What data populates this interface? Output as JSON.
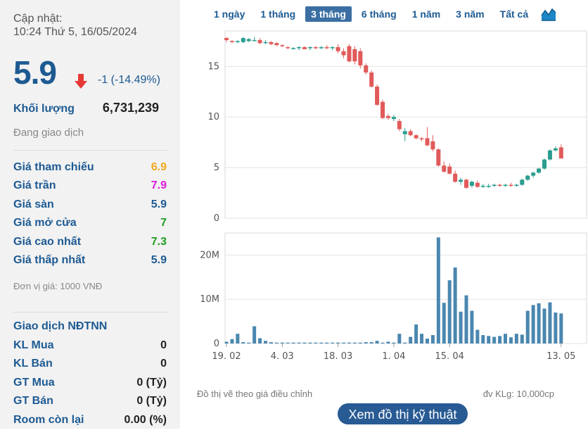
{
  "update": {
    "label": "Cập nhật:",
    "time": "10:24 Thứ 5, 16/05/2024"
  },
  "price": {
    "value": "5.9",
    "change": "-1 (-14.49%)",
    "direction_icon": "arrow-down-icon",
    "color": "#1d5a92",
    "down_color": "#e53935"
  },
  "volume": {
    "label": "Khối lượng",
    "value": "6,731,239"
  },
  "status": "Đang giao dịch",
  "price_rows": [
    {
      "label": "Giá tham chiếu",
      "value": "6.9",
      "color": "#f4a61d"
    },
    {
      "label": "Giá trần",
      "value": "7.9",
      "color": "#d81bd8"
    },
    {
      "label": "Giá sàn",
      "value": "5.9",
      "color": "#1d5a92"
    },
    {
      "label": "Giá mở cửa",
      "value": "7",
      "color": "#1e9e1e"
    },
    {
      "label": "Giá cao nhất",
      "value": "7.3",
      "color": "#1e9e1e"
    },
    {
      "label": "Giá thấp nhất",
      "value": "5.9",
      "color": "#1d5a92"
    }
  ],
  "unit_note": "Đơn vị giá: 1000 VNĐ",
  "foreign": {
    "title": "Giao dịch NĐTNN",
    "rows": [
      {
        "label": "KL Mua",
        "value": "0"
      },
      {
        "label": "KL Bán",
        "value": "0"
      },
      {
        "label": "GT Mua",
        "value": "0 (Tỷ)"
      },
      {
        "label": "GT Bán",
        "value": "0 (Tỷ)"
      },
      {
        "label": "Room còn lại",
        "value": "0.00 (%)"
      }
    ]
  },
  "tabs": [
    {
      "label": "1 ngày",
      "active": false
    },
    {
      "label": "1 tháng",
      "active": false
    },
    {
      "label": "3 tháng",
      "active": true
    },
    {
      "label": "6 tháng",
      "active": false
    },
    {
      "label": "1 năm",
      "active": false
    },
    {
      "label": "3 năm",
      "active": false
    },
    {
      "label": "Tất cả",
      "active": false
    }
  ],
  "chart_type_icon": "area-chart-icon",
  "chart_data": {
    "type": "candlestick",
    "price_axis": {
      "ticks": [
        "0",
        "5",
        "10",
        "15"
      ],
      "ylim": [
        0,
        18.5
      ]
    },
    "volume_axis": {
      "ticks": [
        "0",
        "10M",
        "20M"
      ],
      "ylim": [
        0,
        25
      ]
    },
    "x_tick_labels": [
      "19. 02",
      "4. 03",
      "18. 03",
      "1. 04",
      "15. 04",
      "13. 05"
    ],
    "x_tick_index": [
      0,
      10,
      20,
      30,
      40,
      60
    ],
    "up_color": "#2a9d8f",
    "down_color": "#e15a5a",
    "volume_color": "#4a87b0",
    "candles": [
      {
        "o": 17.8,
        "h": 17.9,
        "l": 17.4,
        "c": 17.6
      },
      {
        "o": 17.5,
        "h": 17.6,
        "l": 17.3,
        "c": 17.4
      },
      {
        "o": 17.4,
        "h": 17.6,
        "l": 17.3,
        "c": 17.5
      },
      {
        "o": 17.4,
        "h": 17.9,
        "l": 17.3,
        "c": 17.8
      },
      {
        "o": 17.5,
        "h": 17.8,
        "l": 17.4,
        "c": 17.7
      },
      {
        "o": 17.6,
        "h": 17.9,
        "l": 17.5,
        "c": 17.6
      },
      {
        "o": 17.6,
        "h": 17.8,
        "l": 17.2,
        "c": 17.3
      },
      {
        "o": 17.3,
        "h": 17.6,
        "l": 17.2,
        "c": 17.4
      },
      {
        "o": 17.4,
        "h": 17.5,
        "l": 17.1,
        "c": 17.2
      },
      {
        "o": 17.3,
        "h": 17.4,
        "l": 17.0,
        "c": 17.1
      },
      {
        "o": 17.1,
        "h": 17.2,
        "l": 16.9,
        "c": 17.0
      },
      {
        "o": 16.9,
        "h": 17.0,
        "l": 16.7,
        "c": 16.8
      },
      {
        "o": 16.8,
        "h": 16.9,
        "l": 16.7,
        "c": 16.8
      },
      {
        "o": 16.8,
        "h": 17.0,
        "l": 16.6,
        "c": 16.9
      },
      {
        "o": 16.9,
        "h": 17.0,
        "l": 16.7,
        "c": 16.7
      },
      {
        "o": 16.8,
        "h": 17.0,
        "l": 16.6,
        "c": 16.9
      },
      {
        "o": 16.9,
        "h": 17.0,
        "l": 16.7,
        "c": 16.8
      },
      {
        "o": 16.8,
        "h": 17.0,
        "l": 16.7,
        "c": 16.9
      },
      {
        "o": 16.9,
        "h": 17.1,
        "l": 16.7,
        "c": 16.8
      },
      {
        "o": 16.8,
        "h": 17.0,
        "l": 16.6,
        "c": 16.9
      },
      {
        "o": 16.9,
        "h": 17.2,
        "l": 16.3,
        "c": 16.5
      },
      {
        "o": 16.5,
        "h": 16.8,
        "l": 15.8,
        "c": 16.1
      },
      {
        "o": 17.0,
        "h": 17.2,
        "l": 15.4,
        "c": 15.5
      },
      {
        "o": 16.7,
        "h": 17.0,
        "l": 15.2,
        "c": 15.5
      },
      {
        "o": 16.5,
        "h": 16.8,
        "l": 14.8,
        "c": 15.1
      },
      {
        "o": 15.1,
        "h": 15.3,
        "l": 14.2,
        "c": 14.4
      },
      {
        "o": 14.4,
        "h": 14.6,
        "l": 12.9,
        "c": 13.0
      },
      {
        "o": 13.0,
        "h": 13.2,
        "l": 11.1,
        "c": 11.2
      },
      {
        "o": 11.5,
        "h": 11.7,
        "l": 9.8,
        "c": 9.9
      },
      {
        "o": 10.1,
        "h": 10.3,
        "l": 9.7,
        "c": 9.9
      },
      {
        "o": 9.8,
        "h": 10.2,
        "l": 9.6,
        "c": 10.0
      },
      {
        "o": 9.6,
        "h": 9.8,
        "l": 8.6,
        "c": 8.8
      },
      {
        "o": 8.3,
        "h": 8.9,
        "l": 7.6,
        "c": 8.6
      },
      {
        "o": 8.6,
        "h": 8.8,
        "l": 8.1,
        "c": 8.2
      },
      {
        "o": 8.2,
        "h": 8.3,
        "l": 7.8,
        "c": 7.9
      },
      {
        "o": 7.9,
        "h": 8.0,
        "l": 7.6,
        "c": 7.8
      },
      {
        "o": 7.9,
        "h": 9.0,
        "l": 7.1,
        "c": 7.2
      },
      {
        "o": 7.6,
        "h": 8.2,
        "l": 6.6,
        "c": 6.8
      },
      {
        "o": 6.8,
        "h": 6.9,
        "l": 5.1,
        "c": 5.2
      },
      {
        "o": 5.2,
        "h": 5.6,
        "l": 4.5,
        "c": 4.6
      },
      {
        "o": 5.1,
        "h": 5.4,
        "l": 4.3,
        "c": 4.4
      },
      {
        "o": 4.4,
        "h": 4.7,
        "l": 3.5,
        "c": 3.6
      },
      {
        "o": 3.6,
        "h": 4.0,
        "l": 3.3,
        "c": 3.8
      },
      {
        "o": 3.8,
        "h": 3.9,
        "l": 2.9,
        "c": 3.0
      },
      {
        "o": 3.2,
        "h": 3.7,
        "l": 3.0,
        "c": 3.6
      },
      {
        "o": 3.5,
        "h": 3.7,
        "l": 3.0,
        "c": 3.1
      },
      {
        "o": 3.1,
        "h": 3.4,
        "l": 3.0,
        "c": 3.2
      },
      {
        "o": 3.2,
        "h": 3.4,
        "l": 3.0,
        "c": 3.2
      },
      {
        "o": 3.2,
        "h": 3.4,
        "l": 3.1,
        "c": 3.3
      },
      {
        "o": 3.3,
        "h": 3.4,
        "l": 3.1,
        "c": 3.2
      },
      {
        "o": 3.2,
        "h": 3.4,
        "l": 3.1,
        "c": 3.3
      },
      {
        "o": 3.3,
        "h": 3.5,
        "l": 3.1,
        "c": 3.2
      },
      {
        "o": 3.2,
        "h": 3.4,
        "l": 3.1,
        "c": 3.3
      },
      {
        "o": 3.3,
        "h": 3.9,
        "l": 3.2,
        "c": 3.8
      },
      {
        "o": 3.8,
        "h": 4.3,
        "l": 3.7,
        "c": 4.2
      },
      {
        "o": 4.2,
        "h": 4.6,
        "l": 4.0,
        "c": 4.5
      },
      {
        "o": 4.5,
        "h": 5.0,
        "l": 4.4,
        "c": 4.9
      },
      {
        "o": 4.9,
        "h": 5.9,
        "l": 4.8,
        "c": 5.8
      },
      {
        "o": 5.8,
        "h": 6.8,
        "l": 5.7,
        "c": 6.7
      },
      {
        "o": 6.7,
        "h": 7.1,
        "l": 6.6,
        "c": 6.9
      },
      {
        "o": 7.0,
        "h": 7.3,
        "l": 5.9,
        "c": 5.9
      }
    ],
    "volumes": [
      0.4,
      1.0,
      2.2,
      0.3,
      0.2,
      3.9,
      1.2,
      0.6,
      0.3,
      0.2,
      0.2,
      0.2,
      0.2,
      0.2,
      0.2,
      0.2,
      0.2,
      0.2,
      0.2,
      0.2,
      0.2,
      0.2,
      0.2,
      0.2,
      0.2,
      0.3,
      0.3,
      0.6,
      0.2,
      0.4,
      0.2,
      2.2,
      0.2,
      1.5,
      4.3,
      2.2,
      1.1,
      1.9,
      24.0,
      9.2,
      14.3,
      17.2,
      7.2,
      10.9,
      7.4,
      3.1,
      1.9,
      1.7,
      1.5,
      1.7,
      2.2,
      1.4,
      2.2,
      2.0,
      7.4,
      8.7,
      9.1,
      7.9,
      9.3,
      7.0,
      6.8
    ]
  },
  "notes": {
    "left": "Đồ thị vẽ theo giá điều chỉnh",
    "right": "đv KLg: 10,000cp"
  },
  "tech_button": "Xem đồ thị kỹ thuật"
}
